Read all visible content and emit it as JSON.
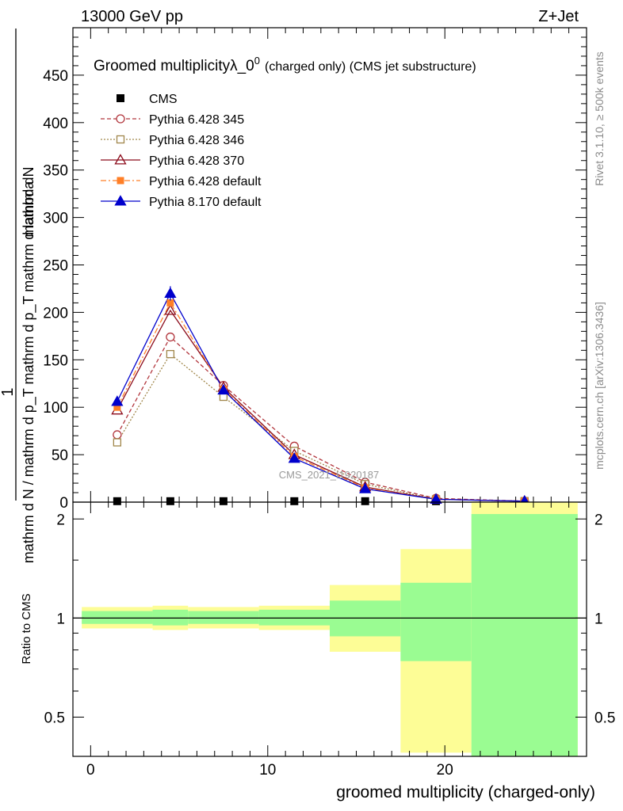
{
  "header": {
    "left": "13000 GeV pp",
    "right": "Z+Jet"
  },
  "plot_title": {
    "main": "Groomed multiplicityλ_0",
    "sup": "0",
    "rest": "(charged only) (CMS jet substructure)"
  },
  "side_labels": {
    "rivet": "Rivet 3.1.10, ≥ 500k events",
    "mcplots": "mcplots.cern.ch [arXiv:1306.3436]"
  },
  "watermark": "CMS_2021_I1920187",
  "ylabel_top": {
    "numerator": "mathrm dN",
    "one": "1",
    "denominator": "mathrm d N / mathrm d p_T mathrm d p_T mathrm d lambda"
  },
  "ylabel_bottom": "Ratio to CMS",
  "xlabel": "groomed multiplicity (charged-only)",
  "chart_data": [
    {
      "type": "line",
      "panel": "main",
      "xlim": [
        -1,
        28
      ],
      "ylim": [
        0,
        500
      ],
      "x_ticks": [
        0,
        10,
        20
      ],
      "x_tick_labels": [
        "0",
        "10",
        "20"
      ],
      "y_ticks": [
        0,
        50,
        100,
        150,
        200,
        250,
        300,
        350,
        400,
        450
      ],
      "y_tick_labels": [
        "0",
        "50",
        "100",
        "150",
        "200",
        "250",
        "300",
        "350",
        "400",
        "450"
      ],
      "legend_position": "top-left",
      "x": [
        1.5,
        4.5,
        7.5,
        11.5,
        15.5,
        19.5,
        24.5
      ],
      "series": [
        {
          "name": "CMS",
          "color": "#000000",
          "dash": "",
          "marker": "filled-square",
          "values": [
            1,
            1,
            1,
            1,
            1,
            1,
            1
          ]
        },
        {
          "name": "Pythia 6.428 345",
          "color": "#b2363d",
          "dash": "5,3",
          "marker": "open-circle",
          "values": [
            71,
            174,
            123,
            59,
            21,
            4,
            1
          ]
        },
        {
          "name": "Pythia 6.428 346",
          "color": "#a0864a",
          "dash": "2,2",
          "marker": "open-square",
          "values": [
            63,
            156,
            111,
            54,
            19,
            3,
            1
          ]
        },
        {
          "name": "Pythia 6.428 370",
          "color": "#8b0a1a",
          "dash": "",
          "marker": "open-triangle",
          "values": [
            97,
            202,
            121,
            50,
            16,
            3,
            1
          ]
        },
        {
          "name": "Pythia 6.428 default",
          "color": "#ff7f27",
          "dash": "7,3,2,3",
          "marker": "filled-square-small",
          "values": [
            100,
            210,
            119,
            48,
            15,
            3,
            1
          ]
        },
        {
          "name": "Pythia 8.170 default",
          "color": "#0000cc",
          "dash": "",
          "marker": "filled-triangle",
          "values": [
            106,
            220,
            118,
            46,
            14,
            3,
            1
          ]
        }
      ]
    },
    {
      "type": "area",
      "panel": "ratio",
      "xlim": [
        -1,
        28
      ],
      "ylim": [
        0.38,
        2.25
      ],
      "y_scale": "log",
      "y_ticks": [
        0.5,
        1,
        2
      ],
      "y_tick_labels": [
        "0.5",
        "1",
        "2"
      ],
      "reference_line": 1,
      "bins": [
        {
          "lo": -0.5,
          "hi": 3.5,
          "green": [
            0.96,
            1.05
          ],
          "yellow": [
            0.93,
            1.08
          ]
        },
        {
          "lo": 3.5,
          "hi": 5.5,
          "green": [
            0.95,
            1.06
          ],
          "yellow": [
            0.92,
            1.09
          ]
        },
        {
          "lo": 5.5,
          "hi": 9.5,
          "green": [
            0.96,
            1.05
          ],
          "yellow": [
            0.93,
            1.08
          ]
        },
        {
          "lo": 9.5,
          "hi": 13.5,
          "green": [
            0.95,
            1.06
          ],
          "yellow": [
            0.92,
            1.09
          ]
        },
        {
          "lo": 13.5,
          "hi": 17.5,
          "green": [
            0.88,
            1.13
          ],
          "yellow": [
            0.79,
            1.26
          ]
        },
        {
          "lo": 17.5,
          "hi": 21.5,
          "green": [
            0.74,
            1.28
          ],
          "yellow": [
            0.39,
            1.62
          ]
        },
        {
          "lo": 21.5,
          "hi": 27.5,
          "green": [
            0.38,
            2.07
          ],
          "yellow": [
            0.38,
            2.25
          ]
        }
      ],
      "colors": {
        "green": "#9afc92",
        "yellow": "#fdfd96"
      }
    }
  ]
}
